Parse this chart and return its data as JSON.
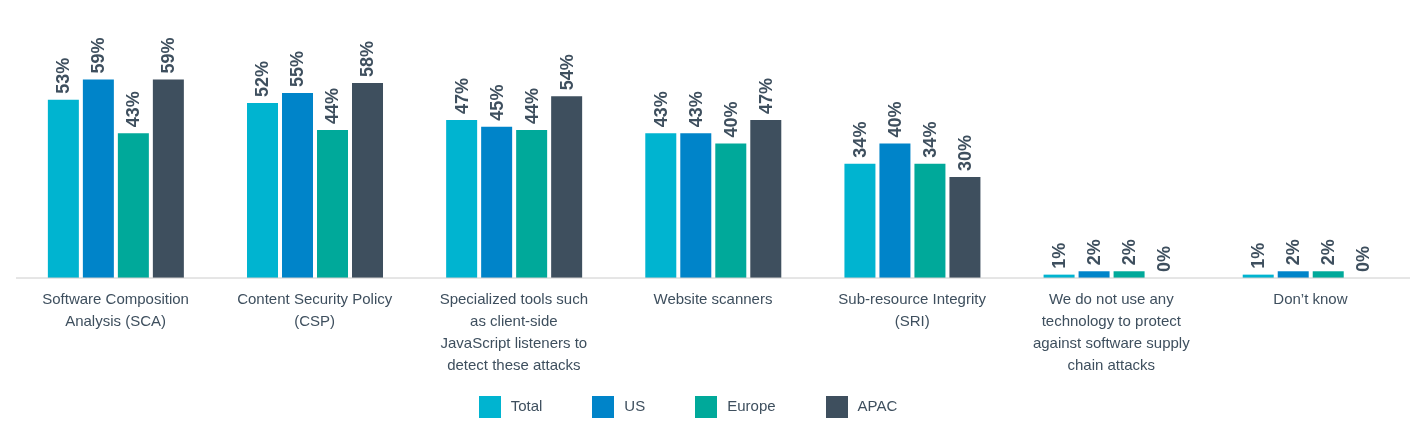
{
  "chart_data": {
    "type": "bar",
    "categories": [
      "Software Composition Analysis (SCA)",
      "Content Security Policy (CSP)",
      "Specialized tools such as client-side JavaScript listeners to detect these attacks",
      "Website scanners",
      "Sub-resource Integrity (SRI)",
      "We do not use any technology to protect against software supply chain attacks",
      "Don’t know"
    ],
    "series": [
      {
        "name": "Total",
        "color": "#00b4d0",
        "values": [
          53,
          52,
          47,
          43,
          34,
          1,
          1
        ],
        "value_labels": [
          "53%",
          "52%",
          "47%",
          "43%",
          "34%",
          "1%",
          "1%"
        ]
      },
      {
        "name": "US",
        "color": "#0084c9",
        "values": [
          59,
          55,
          45,
          43,
          40,
          2,
          2
        ],
        "value_labels": [
          "59%",
          "55%",
          "45%",
          "43%",
          "40%",
          "2%",
          "2%"
        ]
      },
      {
        "name": "Europe",
        "color": "#00a99a",
        "values": [
          43,
          44,
          44,
          40,
          34,
          2,
          2
        ],
        "value_labels": [
          "43%",
          "44%",
          "44%",
          "40%",
          "34%",
          "2%",
          "2%"
        ]
      },
      {
        "name": "APAC",
        "color": "#3e4f5e",
        "values": [
          59,
          58,
          54,
          47,
          30,
          0,
          0
        ],
        "value_labels": [
          "59%",
          "58%",
          "54%",
          "47%",
          "30%",
          "0%",
          "0%"
        ]
      }
    ],
    "legend": "bottom"
  }
}
